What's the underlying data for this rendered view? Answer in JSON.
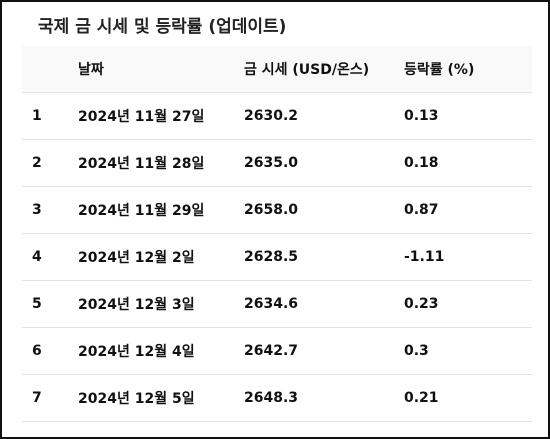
{
  "header": {
    "title": "국제 금 시세 및 등락률 (업데이트)"
  },
  "table": {
    "columns": [
      "날짜",
      "금 시세 (USD/온스)",
      "등락률 (%)"
    ],
    "rows": [
      [
        "1",
        "2024년 11월 27일",
        "2630.2",
        "0.13"
      ],
      [
        "2",
        "2024년 11월 28일",
        "2635.0",
        "0.18"
      ],
      [
        "3",
        "2024년 11월 29일",
        "2658.0",
        "0.87"
      ],
      [
        "4",
        "2024년 12월 2일",
        "2628.5",
        "-1.11"
      ],
      [
        "5",
        "2024년 12월 3일",
        "2634.6",
        "0.23"
      ],
      [
        "6",
        "2024년 12월 4일",
        "2642.7",
        "0.3"
      ],
      [
        "7",
        "2024년 12월 5일",
        "2648.3",
        "0.21"
      ]
    ]
  }
}
